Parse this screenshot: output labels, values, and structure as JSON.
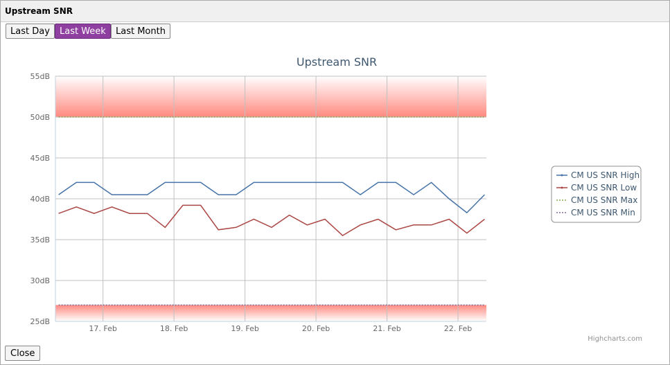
{
  "window": {
    "title": "Upstream SNR",
    "buttons": [
      "Last Day",
      "Last Week",
      "Last Month"
    ],
    "active_button": 1,
    "close_button": "Close"
  },
  "chart_data": {
    "type": "line",
    "title": "Upstream SNR",
    "credits": "Highcharts.com",
    "legend_position": "right",
    "grid": true,
    "x": [
      16.375,
      16.625,
      16.875,
      17.125,
      17.375,
      17.625,
      17.875,
      18.125,
      18.375,
      18.625,
      18.875,
      19.125,
      19.375,
      19.625,
      19.875,
      20.125,
      20.375,
      20.625,
      20.875,
      21.125,
      21.375,
      21.625,
      21.875,
      22.125,
      22.375
    ],
    "xlim": [
      16.33,
      22.4
    ],
    "xticks": [
      {
        "value": 17,
        "label": "17. Feb"
      },
      {
        "value": 18,
        "label": "18. Feb"
      },
      {
        "value": 19,
        "label": "19. Feb"
      },
      {
        "value": 20,
        "label": "20. Feb"
      },
      {
        "value": 21,
        "label": "21. Feb"
      },
      {
        "value": 22,
        "label": "22. Feb"
      }
    ],
    "ylim": [
      25,
      55
    ],
    "yticks": [
      {
        "value": 25,
        "label": "25dB"
      },
      {
        "value": 30,
        "label": "30dB"
      },
      {
        "value": 35,
        "label": "35dB"
      },
      {
        "value": 40,
        "label": "40dB"
      },
      {
        "value": 45,
        "label": "45dB"
      },
      {
        "value": 50,
        "label": "50dB"
      },
      {
        "value": 55,
        "label": "55dB"
      }
    ],
    "plot_bands": [
      {
        "from": 50,
        "to": 55
      },
      {
        "from": 25,
        "to": 27
      }
    ],
    "series": [
      {
        "name": "CM US SNR High",
        "color": "#4572a7",
        "dash": false,
        "values": [
          40.5,
          42,
          42,
          40.5,
          40.5,
          40.5,
          42,
          42,
          42,
          40.5,
          40.5,
          42,
          42,
          42,
          42,
          42,
          42,
          40.5,
          42,
          42,
          40.5,
          42,
          40,
          38.3,
          40.5
        ]
      },
      {
        "name": "CM US SNR Low",
        "color": "#aa4643",
        "dash": false,
        "values": [
          38.2,
          39,
          38.2,
          39,
          38.2,
          38.2,
          36.5,
          39.2,
          39.2,
          36.2,
          36.5,
          37.5,
          36.5,
          38,
          36.8,
          37.5,
          35.5,
          36.8,
          37.5,
          36.2,
          36.8,
          36.8,
          37.5,
          35.8,
          37.5
        ]
      },
      {
        "name": "CM US SNR Max",
        "color": "#89a54e",
        "dash": true,
        "values": [
          50,
          50,
          50,
          50,
          50,
          50,
          50,
          50,
          50,
          50,
          50,
          50,
          50,
          50,
          50,
          50,
          50,
          50,
          50,
          50,
          50,
          50,
          50,
          50,
          50
        ]
      },
      {
        "name": "CM US SNR Min",
        "color": "#80699b",
        "dash": true,
        "values": [
          27,
          27,
          27,
          27,
          27,
          27,
          27,
          27,
          27,
          27,
          27,
          27,
          27,
          27,
          27,
          27,
          27,
          27,
          27,
          27,
          27,
          27,
          27,
          27,
          27
        ]
      }
    ]
  }
}
